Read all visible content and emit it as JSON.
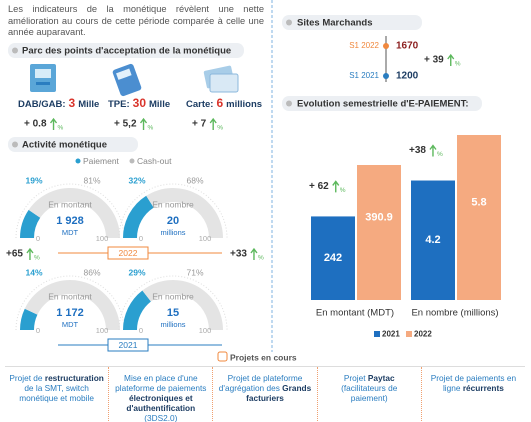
{
  "intro": "Les indicateurs de la monétique révèlent une nette amélioration au cours de cette période comparée à celle une année auparavant.",
  "growth_icon": "%",
  "acceptance": {
    "title": "Parc des points d'acceptation de la monétique",
    "items": [
      {
        "label": "DAB/GAB:",
        "value": "3",
        "unit": "Mille",
        "growth": "+ 0.8"
      },
      {
        "label": "TPE:",
        "value": "30",
        "unit": "Mille",
        "growth": "+ 5,2"
      },
      {
        "label": "Carte:",
        "value": "6",
        "unit": "millions",
        "growth": "+ 7"
      }
    ]
  },
  "activity": {
    "title": "Activité monétique",
    "legend": [
      "Paiement",
      "Cash-out"
    ],
    "scale": [
      "0",
      "100"
    ],
    "rows": [
      {
        "year": "2022",
        "year_color": "#f0883e",
        "growth_left": "+65",
        "growth_right": "+33",
        "gauges": [
          {
            "label": "En montant",
            "value": "1 928",
            "unit": "MDT",
            "values": [
              19,
              81
            ],
            "value_labels": [
              "19%",
              "81%"
            ]
          },
          {
            "label": "En nombre",
            "value": "20",
            "unit": "millions",
            "values": [
              32,
              68
            ],
            "value_labels": [
              "32%",
              "68%"
            ]
          }
        ]
      },
      {
        "year": "2021",
        "year_color": "#2a7dc0",
        "growth_left": "",
        "growth_right": "",
        "gauges": [
          {
            "label": "En montant",
            "value": "1 172",
            "unit": "MDT",
            "values": [
              14,
              86
            ],
            "value_labels": [
              "14%",
              "86%"
            ]
          },
          {
            "label": "En nombre",
            "value": "15",
            "unit": "millions",
            "values": [
              29,
              71
            ],
            "value_labels": [
              "29%",
              "71%"
            ]
          }
        ]
      }
    ]
  },
  "sites": {
    "title": "Sites Marchands",
    "growth": "+ 39",
    "rows": [
      {
        "period": "S1 2022",
        "value": "1670",
        "color": "#f0883e"
      },
      {
        "period": "S1 2021",
        "value": "1200",
        "color": "#2a7dc0"
      }
    ]
  },
  "chart_data": {
    "type": "bar",
    "title": "Evolution semestrielle d'E-PAIEMENT:",
    "categories": [
      "En montant (MDT)",
      "En nombre (millions)"
    ],
    "series": [
      {
        "name": "2021",
        "color": "#1e6fc0",
        "values": [
          242,
          4.2
        ]
      },
      {
        "name": "2022",
        "color": "#f5aa80",
        "values": [
          390.9,
          5.8
        ]
      }
    ],
    "annotations": [
      "+ 62",
      "+38"
    ]
  },
  "projects": {
    "title": "Projets en cours",
    "items": [
      [
        {
          "text": "Projet de ",
          "bold": false
        },
        {
          "text": "restructuration",
          "bold": true
        },
        {
          "text": " de la SMT, switch monétique et mobile",
          "bold": false
        }
      ],
      [
        {
          "text": "Mise en place d'une plateforme de paiements ",
          "bold": false
        },
        {
          "text": "électroniques et d'authentification",
          "bold": true
        },
        {
          "text": " (3DS2.0)",
          "bold": false
        }
      ],
      [
        {
          "text": "Projet de plateforme d'agrégation des ",
          "bold": false
        },
        {
          "text": "Grands facturiers",
          "bold": true
        }
      ],
      [
        {
          "text": "Projet ",
          "bold": false
        },
        {
          "text": "Paytac",
          "bold": true
        },
        {
          "text": " (facilitateurs de paiement)",
          "bold": false
        }
      ],
      [
        {
          "text": "Projet de paiements en ligne ",
          "bold": false
        },
        {
          "text": "récurrents",
          "bold": true
        }
      ]
    ]
  }
}
